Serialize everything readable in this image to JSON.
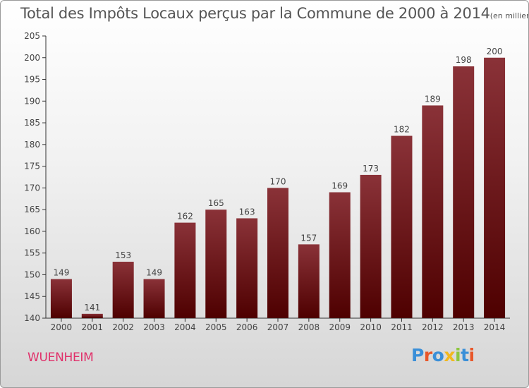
{
  "header": {
    "title": "Total des Impôts Locaux perçus par la Commune de 2000 à 2014",
    "unit": "(en milliers d'€)"
  },
  "footer": {
    "commune": "WUENHEIM",
    "logo_letters": [
      "P",
      "r",
      "o",
      "x",
      "i",
      "t",
      "i"
    ],
    "logo_colors": [
      "#3a8fd8",
      "#e8572a",
      "#3a8fd8",
      "#f2b81e",
      "#8dc63f",
      "#3a8fd8",
      "#e8572a"
    ]
  },
  "colors": {
    "bar_top": "#8a3238",
    "bar_bottom": "#4e0000",
    "accent": "#e0306a"
  },
  "chart_data": {
    "type": "bar",
    "title": "Total des Impôts Locaux perçus par la Commune de 2000 à 2014",
    "ylabel": "en milliers d'€",
    "xlabel": "",
    "categories": [
      "2000",
      "2001",
      "2002",
      "2003",
      "2004",
      "2005",
      "2006",
      "2007",
      "2008",
      "2009",
      "2010",
      "2011",
      "2012",
      "2013",
      "2014"
    ],
    "values": [
      149,
      141,
      153,
      149,
      162,
      165,
      163,
      170,
      157,
      169,
      173,
      182,
      189,
      198,
      200
    ],
    "ylim": [
      140,
      205
    ],
    "yticks": [
      140,
      145,
      150,
      155,
      160,
      165,
      170,
      175,
      180,
      185,
      190,
      195,
      200,
      205
    ],
    "grid": false,
    "data_labels": true
  }
}
